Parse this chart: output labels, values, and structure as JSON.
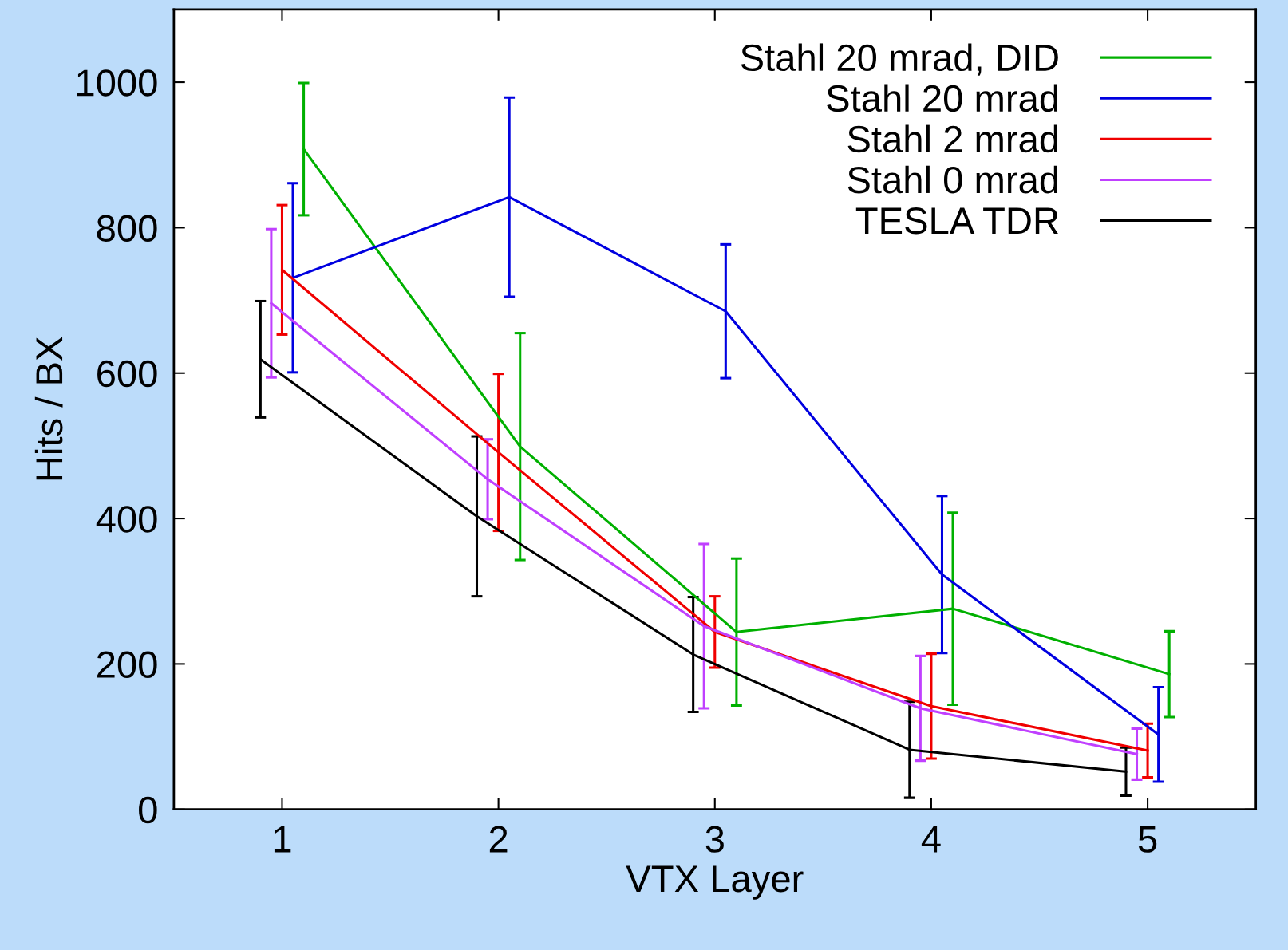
{
  "chart_data": {
    "type": "line",
    "xlabel": "VTX Layer",
    "ylabel": "Hits / BX",
    "xlim": [
      0.5,
      5.5
    ],
    "xticks": [
      1,
      2,
      3,
      4,
      5
    ],
    "ylim": [
      0,
      1100
    ],
    "yticks": [
      0,
      200,
      400,
      600,
      800,
      1000
    ],
    "legend": "top right",
    "grid": false,
    "marker": "none",
    "line_style": "solid",
    "series": [
      {
        "name": "Stahl 20 mrad, DID",
        "color": "#00b000",
        "x": [
          1.1,
          2.1,
          3.1,
          4.1,
          5.1
        ],
        "values": [
          908,
          499,
          244,
          276,
          186
        ],
        "errors": [
          91,
          156,
          101,
          132,
          59
        ]
      },
      {
        "name": "Stahl 20 mrad",
        "color": "#0000e0",
        "x": [
          1.05,
          2.05,
          3.05,
          4.05,
          5.05
        ],
        "values": [
          731,
          842,
          685,
          323,
          103
        ],
        "errors": [
          130,
          137,
          92,
          108,
          65
        ]
      },
      {
        "name": "Stahl 2 mrad",
        "color": "#f00000",
        "x": [
          1.0,
          2.0,
          3.0,
          4.0,
          5.0
        ],
        "values": [
          742,
          491,
          244,
          142,
          81
        ],
        "errors": [
          89,
          108,
          49,
          72,
          37
        ]
      },
      {
        "name": "Stahl 0 mrad",
        "color": "#c040ff",
        "x": [
          0.95,
          1.95,
          2.95,
          3.95,
          4.95
        ],
        "values": [
          696,
          454,
          252,
          139,
          76
        ],
        "errors": [
          102,
          55,
          113,
          72,
          35
        ]
      },
      {
        "name": "TESLA TDR",
        "color": "#000000",
        "x": [
          0.9,
          1.9,
          2.9,
          3.9,
          4.9
        ],
        "values": [
          619,
          403,
          213,
          82,
          52
        ],
        "errors": [
          80,
          110,
          79,
          66,
          33
        ]
      }
    ]
  }
}
